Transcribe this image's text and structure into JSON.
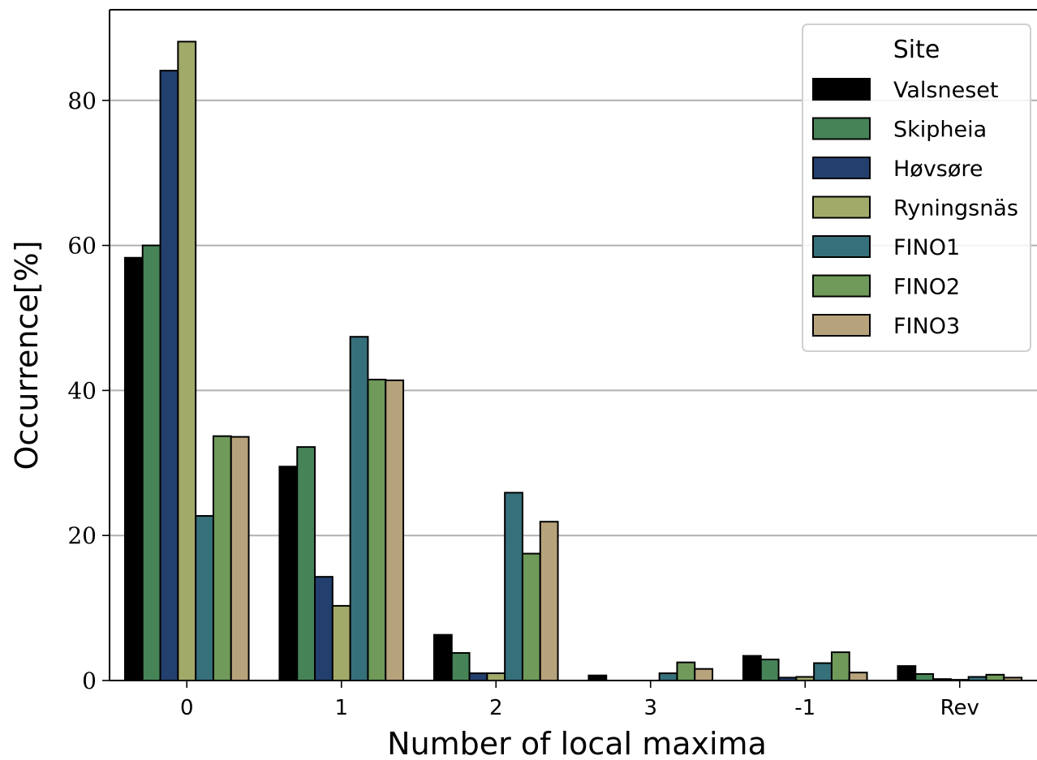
{
  "chart_data": {
    "type": "bar",
    "xlabel": "Number of local maxima",
    "ylabel": "Occurrence[%]",
    "categories": [
      "0",
      "1",
      "2",
      "3",
      "-1",
      "Rev"
    ],
    "ylim": [
      0,
      92.5
    ],
    "yticks": [
      "0",
      "20",
      "40",
      "60",
      "80"
    ],
    "grid": "horizontal",
    "legend": {
      "title": "Site",
      "placement": "top-right"
    },
    "series": [
      {
        "name": "Valsneset",
        "color": "#000000",
        "values": [
          58.3,
          29.5,
          6.3,
          0.7,
          3.4,
          2.0
        ]
      },
      {
        "name": "Skipheia",
        "color": "#468458",
        "values": [
          60.0,
          32.2,
          3.8,
          0.0,
          2.9,
          0.9
        ]
      },
      {
        "name": "Høvsøre",
        "color": "#223f6e",
        "values": [
          84.1,
          14.3,
          1.0,
          0.0,
          0.4,
          0.2
        ]
      },
      {
        "name": "Ryningsnäs",
        "color": "#a2aa6a",
        "values": [
          88.1,
          10.3,
          1.0,
          0.0,
          0.5,
          0.1
        ]
      },
      {
        "name": "FINO1",
        "color": "#36707a",
        "values": [
          22.7,
          47.4,
          25.9,
          1.0,
          2.4,
          0.5
        ]
      },
      {
        "name": "FINO2",
        "color": "#6f9a5a",
        "values": [
          33.7,
          41.5,
          17.5,
          2.5,
          3.9,
          0.8
        ]
      },
      {
        "name": "FINO3",
        "color": "#b7a37b",
        "values": [
          33.6,
          41.4,
          21.9,
          1.6,
          1.1,
          0.4
        ]
      }
    ]
  }
}
